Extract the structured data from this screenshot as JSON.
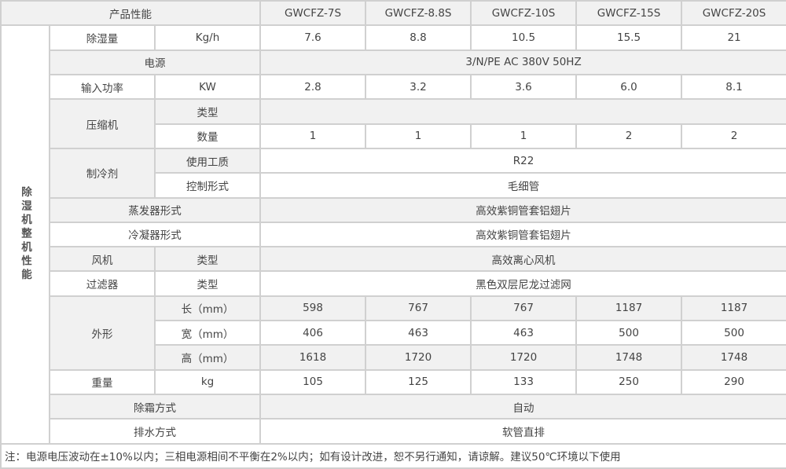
{
  "header": {
    "label": "产品性能",
    "models": [
      "GWCFZ-7S",
      "GWCFZ-8.8S",
      "GWCFZ-10S",
      "GWCFZ-15S",
      "GWCFZ-20S"
    ]
  },
  "side_label": "除湿机整机性能",
  "rows": {
    "dehumid": {
      "label": "除湿量",
      "unit": "Kg/h",
      "values": [
        "7.6",
        "8.8",
        "10.5",
        "15.5",
        "21"
      ]
    },
    "power": {
      "label": "电源",
      "value": "3/N/PE AC 380V 50HZ"
    },
    "input_power": {
      "label": "输入功率",
      "unit": "KW",
      "values": [
        "2.8",
        "3.2",
        "3.6",
        "6.0",
        "8.1"
      ]
    },
    "compressor": {
      "label": "压缩机",
      "type_label": "类型",
      "type_value": "",
      "count_label": "数量",
      "counts": [
        "1",
        "1",
        "1",
        "2",
        "2"
      ]
    },
    "refrigerant": {
      "label": "制冷剂",
      "medium_label": "使用工质",
      "medium_value": "R22",
      "control_label": "控制形式",
      "control_value": "毛细管"
    },
    "evaporator": {
      "label": "蒸发器形式",
      "value": "高效紫铜管套铝翅片"
    },
    "condenser": {
      "label": "冷凝器形式",
      "value": "高效紫铜管套铝翅片"
    },
    "fan": {
      "label": "风机",
      "type_label": "类型",
      "value": "高效离心风机"
    },
    "filter": {
      "label": "过滤器",
      "type_label": "类型",
      "value": "黑色双层尼龙过滤网"
    },
    "dimensions": {
      "label": "外形",
      "length": {
        "label": "长（mm）",
        "values": [
          "598",
          "767",
          "767",
          "1187",
          "1187"
        ]
      },
      "width": {
        "label": "宽（mm）",
        "values": [
          "406",
          "463",
          "463",
          "500",
          "500"
        ]
      },
      "height": {
        "label": "高（mm）",
        "values": [
          "1618",
          "1720",
          "1720",
          "1748",
          "1748"
        ]
      }
    },
    "weight": {
      "label": "重量",
      "unit": "kg",
      "values": [
        "105",
        "125",
        "133",
        "250",
        "290"
      ]
    },
    "defrost": {
      "label": "除霜方式",
      "value": "自动"
    },
    "drain": {
      "label": "排水方式",
      "value": "软管直排"
    }
  },
  "note": "注：电源电压波动在±10%以内；三相电源相间不平衡在2%以内；如有设计改进，恕不另行通知，请谅解。建议50℃环境以下使用",
  "colors": {
    "border": "#d0d0d0",
    "stripe": "#f1f1f1",
    "text": "#444444"
  }
}
